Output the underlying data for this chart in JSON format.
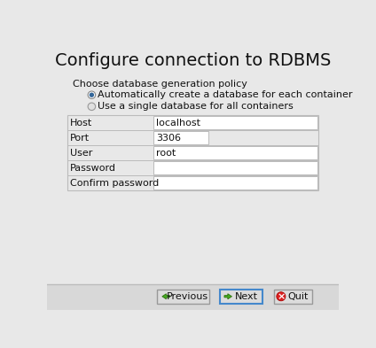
{
  "title": "Configure connection to RDBMS",
  "bg_color": "#e8e8e8",
  "bottom_bg": "#d8d8d8",
  "title_color": "#111111",
  "label_color": "#111111",
  "policy_label": "Choose database generation policy",
  "radio1": "Automatically create a database for each container",
  "radio2": "Use a single database for all containers",
  "fields": [
    "Host",
    "Port",
    "User",
    "Password",
    "Confirm password"
  ],
  "field_values": [
    "localhost",
    "3306",
    "root",
    "",
    ""
  ],
  "btn_previous": "Previous",
  "btn_next": "Next",
  "btn_quit": "Quit",
  "input_bg": "#ffffff",
  "input_border": "#bbbbbb",
  "form_bg": "#e8e8e8",
  "btn_bg": "#dcdcdc",
  "btn_border": "#999999",
  "next_border": "#4488cc",
  "green_arrow": "#44aa22",
  "red_circle": "#dd2222",
  "title_fontsize": 14,
  "label_fontsize": 8,
  "policy_fontsize": 8,
  "radio_fontsize": 8,
  "btn_fontsize": 8
}
